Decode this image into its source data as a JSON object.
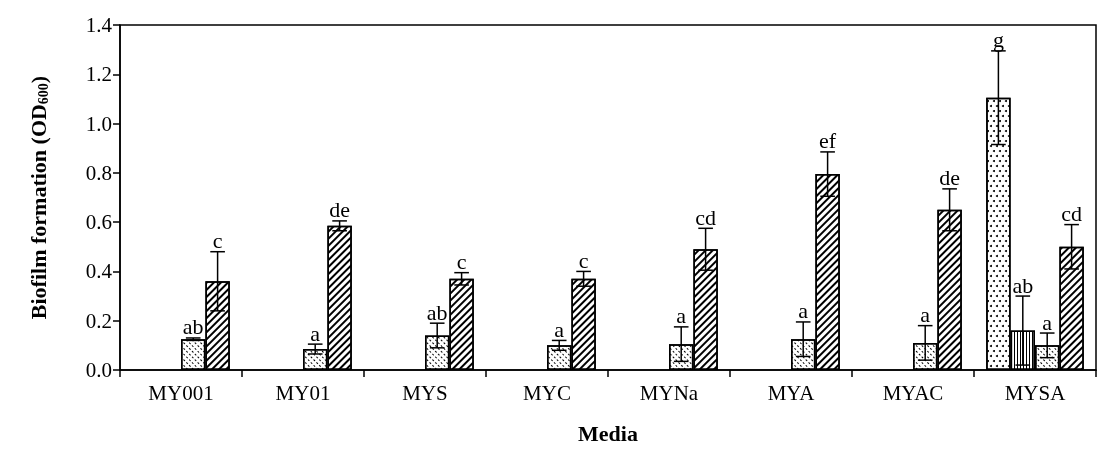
{
  "chart_data": {
    "type": "bar",
    "xlabel": "Media",
    "ylabel": "Biofilm formation (OD$_{600}$)",
    "categories": [
      "MY001",
      "MY01",
      "MYS",
      "MYC",
      "MYNa",
      "MYA",
      "MYAC",
      "MYSA"
    ],
    "ylim": [
      0,
      1.4
    ],
    "yticks": [
      {
        "value": 0,
        "label": "0.0"
      },
      {
        "value": 0.2,
        "label": "0.2"
      },
      {
        "value": 0.4,
        "label": "0.4"
      },
      {
        "value": 0.6,
        "label": "0.6"
      },
      {
        "value": 0.8,
        "label": "0.8"
      },
      {
        "value": 1,
        "label": "1.0"
      },
      {
        "value": 1.2,
        "label": "1.2"
      },
      {
        "value": 1.4,
        "label": "1.4"
      }
    ],
    "series": [
      {
        "color": "#ffffff",
        "values": [
          null,
          null,
          null,
          null,
          null,
          null,
          null,
          1.105
        ],
        "errors": [
          null,
          null,
          null,
          null,
          null,
          null,
          null,
          0.19
        ],
        "value_labels": [
          null,
          null,
          null,
          null,
          null,
          null,
          null,
          "g"
        ]
      },
      {
        "color": "#ffffff",
        "values": [
          null,
          null,
          null,
          null,
          null,
          null,
          null,
          0.16
        ],
        "errors": [
          null,
          null,
          null,
          null,
          null,
          null,
          null,
          0.14
        ],
        "value_labels": [
          null,
          null,
          null,
          null,
          null,
          null,
          null,
          "ab"
        ]
      },
      {
        "color": "#ffffff",
        "values": [
          0.125,
          0.085,
          0.14,
          0.1,
          0.105,
          0.125,
          0.11,
          0.1
        ],
        "errors": [
          0.005,
          0.02,
          0.05,
          0.02,
          0.07,
          0.07,
          0.07,
          0.05
        ],
        "value_labels": [
          "ab",
          "a",
          "ab",
          "a",
          "a",
          "a",
          "a",
          "a"
        ]
      },
      {
        "color": "#ffffff",
        "values": [
          0.36,
          0.585,
          0.37,
          0.37,
          0.49,
          0.795,
          0.65,
          0.5
        ],
        "errors": [
          0.12,
          0.02,
          0.025,
          0.03,
          0.085,
          0.09,
          0.085,
          0.09
        ],
        "value_labels": [
          "c",
          "de",
          "c",
          "c",
          "cd",
          "ef",
          "de",
          "cd"
        ]
      }
    ],
    "grid": false
  }
}
